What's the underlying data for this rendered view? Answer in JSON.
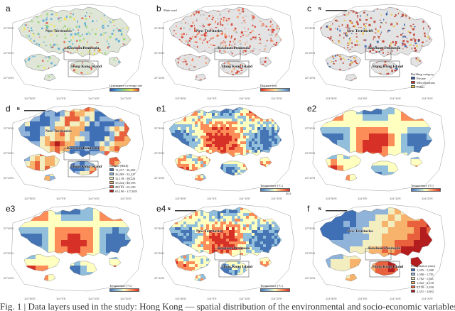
{
  "panels": [
    {
      "id": "a",
      "label": "a",
      "scheme": "green",
      "legend_type": "colorbar",
      "colorbar_label": "Greenspace coverage rate",
      "colorbar_min": "",
      "colorbar_max": "",
      "colorbar_colors": [
        "#2c4fa3",
        "#4aa3d8",
        "#8fd16a",
        "#f2e24a",
        "#e0463a"
      ],
      "places": [
        "New Territories",
        "Kowloon Peninsula",
        "Hong Kong Island"
      ],
      "extra": ""
    },
    {
      "id": "b",
      "label": "b",
      "scheme": "roads",
      "legend_type": "colorbar",
      "colorbar_label": "Distance (m)",
      "colorbar_min": "",
      "colorbar_max": "",
      "colorbar_colors": [
        "#d7301f",
        "#fc8d59",
        "#fee090",
        "#91bfdb",
        "#4575b4"
      ],
      "places": [
        "New Territories",
        "Kowloon Peninsula",
        "Hong Kong Island"
      ],
      "extra": "Main road"
    },
    {
      "id": "c",
      "label": "c",
      "scheme": "buildings",
      "legend_type": "categories",
      "legend_title": "Building category",
      "categories": [
        {
          "name": "Private",
          "color": "#2b5aa8"
        },
        {
          "name": "Miscellaneous",
          "color": "#c0392b"
        },
        {
          "name": "Public",
          "color": "#e8c84a"
        }
      ],
      "places": [
        "New Territories",
        "Kowloon Peninsula",
        "Hong Kong Island"
      ],
      "extra": ""
    },
    {
      "id": "d",
      "label": "d",
      "scheme": "income",
      "legend_type": "categories",
      "legend_title": "Income (HK$)",
      "categories": [
        {
          "name": "11,217 - 26,269",
          "color": "#3f6fb5"
        },
        {
          "name": "26,269 - 32,217",
          "color": "#8fb3d9"
        },
        {
          "name": "32,118 - 39,224",
          "color": "#f3eec0"
        },
        {
          "name": "39,224 - 48,193",
          "color": "#f7b36b"
        },
        {
          "name": "48,193 - 65,190",
          "color": "#e8603c"
        },
        {
          "name": "65,190 - 117,818",
          "color": "#b31d1d"
        }
      ],
      "places": [
        "New Territories",
        "Kowloon Peninsula",
        "Hong Kong Island"
      ],
      "extra": ""
    },
    {
      "id": "e1",
      "label": "e1",
      "scheme": "temp_fine",
      "legend_type": "colorbar",
      "colorbar_label": "Temperature (°C)",
      "colorbar_min": "",
      "colorbar_max": "30.4",
      "colorbar_colors": [
        "#4575b4",
        "#91bfdb",
        "#ffffbf",
        "#fc8d59",
        "#d73027"
      ],
      "places": [],
      "extra": ""
    },
    {
      "id": "e2",
      "label": "e2",
      "scheme": "temp_smooth",
      "legend_type": "colorbar",
      "colorbar_label": "Temperature (°C)",
      "colorbar_min": "",
      "colorbar_max": "",
      "colorbar_colors": [
        "#4575b4",
        "#91bfdb",
        "#ffffbf",
        "#fc8d59",
        "#d73027"
      ],
      "places": [],
      "extra": ""
    },
    {
      "id": "e3",
      "label": "e3",
      "scheme": "temp_smooth2",
      "legend_type": "colorbar",
      "colorbar_label": "Temperature (°C)",
      "colorbar_min": "",
      "colorbar_max": "",
      "colorbar_colors": [
        "#4575b4",
        "#91bfdb",
        "#ffffbf",
        "#fc8d59",
        "#d73027"
      ],
      "places": [],
      "extra": ""
    },
    {
      "id": "e4",
      "label": "e4",
      "scheme": "temp_fine2",
      "legend_type": "colorbar",
      "colorbar_label": "Temperature (°C)",
      "colorbar_min": "",
      "colorbar_max": "",
      "colorbar_colors": [
        "#4575b4",
        "#91bfdb",
        "#ffffbf",
        "#fc8d59",
        "#d73027"
      ],
      "places": [
        "New Territories",
        "Kowloon Peninsula",
        "Hong Kong Island"
      ],
      "extra": ""
    },
    {
      "id": "f",
      "label": "f",
      "scheme": "precip",
      "legend_type": "categories",
      "legend_title": "Precipitation (mm)",
      "categories": [
        {
          "name": "1,355 - 1,580",
          "color": "#3f6fb5"
        },
        {
          "name": "1,580 - 1,781",
          "color": "#8fb3d9"
        },
        {
          "name": "1,782 - 1,921",
          "color": "#f3eec0"
        },
        {
          "name": "1,922 - 2,150",
          "color": "#f7b36b"
        },
        {
          "name": "2,150 - 2,350",
          "color": "#e8603c"
        },
        {
          "name": "2,351 - 2,602",
          "color": "#b31d1d"
        }
      ],
      "places": [
        "New Territories",
        "Kowloon Peninsula",
        "Hong Kong Island"
      ],
      "extra": ""
    }
  ],
  "ticks": {
    "x": [
      "113°50'E",
      "114°0'E",
      "114°10'E",
      "114°20'E"
    ],
    "y": [
      "22°30'N",
      "22°20'N",
      "22°10'N"
    ]
  },
  "north_label": "N",
  "caption": "Fig. 1 | Data layers used in the study: Hong Kong — spatial distribution of the environmental and socio-economic variables"
}
